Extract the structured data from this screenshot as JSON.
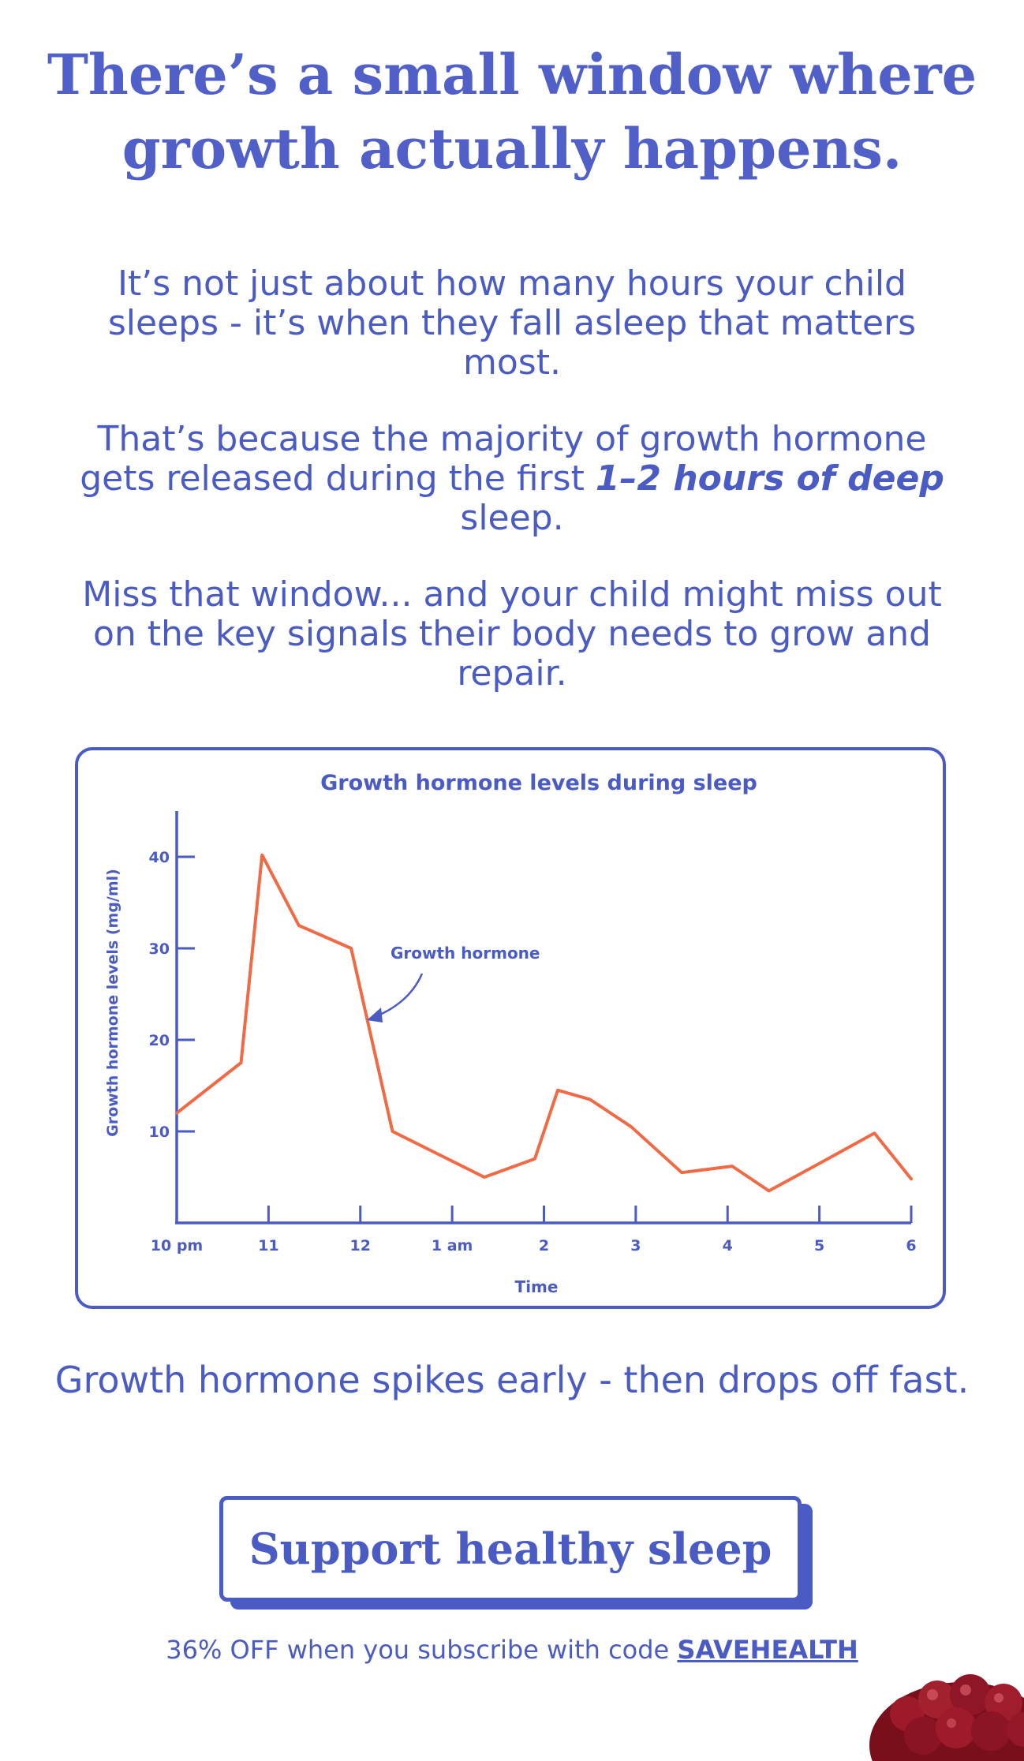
{
  "headline": {
    "line1": "There’s a small window where",
    "line2": "growth actually happens."
  },
  "paragraphs": {
    "p1": "It’s not just about how many hours your child sleeps - it’s when they fall asleep that matters most.",
    "p2_before": "That’s because the majority of growth hormone gets released during the first ",
    "p2_em": "1–2 hours of deep",
    "p2_after": " sleep.",
    "p3": "Miss that window... and your child might miss out on the key signals their body needs to grow and repair."
  },
  "chart_data": {
    "type": "line",
    "title": "Growth hormone levels during sleep",
    "xlabel": "Time",
    "ylabel": "Growth hormone levels (mg/ml)",
    "x_ticks": [
      "10 pm",
      "11",
      "12",
      "1 am",
      "2",
      "3",
      "4",
      "5",
      "6"
    ],
    "y_ticks": [
      10,
      20,
      30,
      40
    ],
    "xlim": [
      0,
      8
    ],
    "ylim": [
      0,
      45
    ],
    "series": [
      {
        "name": "Growth hormone",
        "color": "#ef6a45",
        "x": [
          0,
          0.7,
          0.93,
          1.33,
          1.9,
          2.35,
          3.35,
          3.9,
          4.15,
          4.5,
          4.95,
          5.5,
          6.05,
          6.45,
          7,
          7.6,
          8
        ],
        "y": [
          12,
          17.5,
          40.2,
          32.5,
          30,
          10,
          5,
          7,
          14.5,
          13.5,
          10.5,
          5.5,
          6.2,
          3.5,
          6.5,
          9.8,
          4.8
        ]
      }
    ],
    "annotation": "Growth hormone",
    "grid": false,
    "legend": "none"
  },
  "caption": "Growth hormone spikes early - then drops off fast.",
  "cta": {
    "label": "Support healthy sleep"
  },
  "promo": {
    "text": "36% OFF when you subscribe with code ",
    "code": "SAVEHEALTH"
  },
  "colors": {
    "brand": "#4a5bc4",
    "line": "#ef6a45",
    "berry": "#8b1420"
  }
}
